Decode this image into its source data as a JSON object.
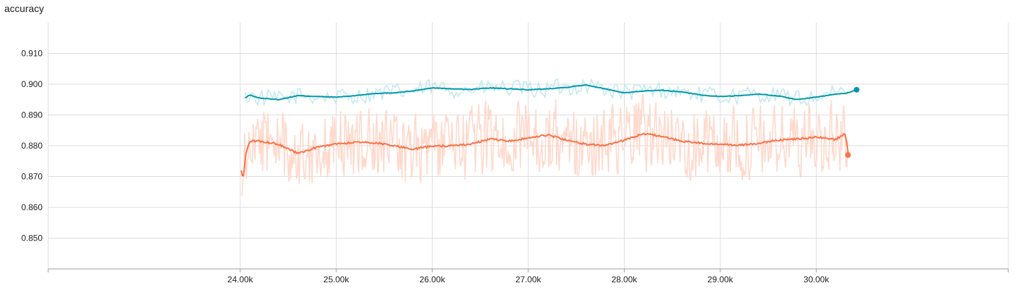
{
  "chart_data": {
    "type": "line",
    "title": "accuracy",
    "xlabel": "",
    "ylabel": "",
    "xlim": [
      22000,
      32000
    ],
    "ylim": [
      0.84,
      0.92
    ],
    "x_ticks": [
      24000,
      25000,
      26000,
      27000,
      28000,
      29000,
      30000
    ],
    "x_tick_labels": [
      "24.00k",
      "25.00k",
      "26.00k",
      "27.00k",
      "28.00k",
      "29.00k",
      "30.00k"
    ],
    "y_ticks": [
      0.85,
      0.86,
      0.87,
      0.88,
      0.89,
      0.9,
      0.91
    ],
    "y_tick_labels": [
      "0.850",
      "0.860",
      "0.870",
      "0.880",
      "0.890",
      "0.900",
      "0.910"
    ],
    "grid": true,
    "legend": "none",
    "series": [
      {
        "color": "#0097ac",
        "raw_color": "#c2eaf0",
        "x": [
          24050,
          24100,
          24200,
          24400,
          24600,
          24800,
          25000,
          25200,
          25400,
          25600,
          25800,
          26000,
          26200,
          26400,
          26600,
          26800,
          27000,
          27200,
          27400,
          27600,
          27800,
          28000,
          28200,
          28400,
          28600,
          28800,
          29000,
          29200,
          29400,
          29600,
          29800,
          30000,
          30200,
          30330
        ],
        "values": [
          0.8955,
          0.8965,
          0.8955,
          0.895,
          0.8963,
          0.896,
          0.8958,
          0.8963,
          0.897,
          0.8972,
          0.8978,
          0.8988,
          0.8985,
          0.8983,
          0.8988,
          0.8985,
          0.8982,
          0.8985,
          0.899,
          0.8998,
          0.8985,
          0.8972,
          0.8978,
          0.898,
          0.8975,
          0.8965,
          0.896,
          0.8963,
          0.8968,
          0.8962,
          0.895,
          0.8958,
          0.8968,
          0.8972
        ],
        "last_point": [
          30420,
          0.8982
        ]
      },
      {
        "color": "#ff7043",
        "raw_color": "#ffd9cc",
        "x": [
          24010,
          24030,
          24060,
          24100,
          24200,
          24400,
          24600,
          24800,
          25000,
          25200,
          25400,
          25600,
          25800,
          26000,
          26200,
          26400,
          26600,
          26800,
          27000,
          27200,
          27400,
          27600,
          27800,
          28000,
          28200,
          28400,
          28600,
          28800,
          29000,
          29200,
          29400,
          29600,
          29800,
          30000,
          30200,
          30300,
          30330
        ],
        "values": [
          0.872,
          0.869,
          0.878,
          0.8815,
          0.8815,
          0.8805,
          0.8775,
          0.8795,
          0.8805,
          0.8812,
          0.881,
          0.88,
          0.879,
          0.8798,
          0.88,
          0.8805,
          0.8822,
          0.8815,
          0.8825,
          0.8835,
          0.8818,
          0.8805,
          0.88,
          0.8818,
          0.884,
          0.883,
          0.8815,
          0.8808,
          0.8805,
          0.8802,
          0.8808,
          0.8818,
          0.8822,
          0.8828,
          0.882,
          0.884,
          0.878
        ],
        "last_point": [
          30330,
          0.877
        ]
      }
    ]
  }
}
